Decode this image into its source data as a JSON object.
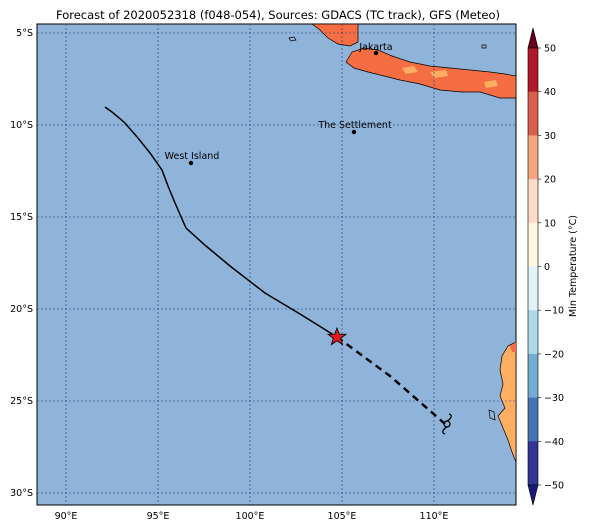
{
  "title": "Forecast of 2020052318 (f048-054), Sources: GDACS (TC track), GFS (Meteo)",
  "colors": {
    "ocean": "#8fb3d9",
    "land_warm": "#f46d43",
    "land_mild": "#fdae61",
    "grid": "#1f3a6e",
    "track": "#000000",
    "storm_marker": "#e31a1c"
  },
  "axes": {
    "lon_ticks": [
      "90°E",
      "95°E",
      "100°E",
      "105°E",
      "110°E"
    ],
    "lat_ticks": [
      "5°S",
      "10°S",
      "15°S",
      "20°S",
      "25°S",
      "30°S"
    ]
  },
  "places": [
    {
      "name": "Jakarta"
    },
    {
      "name": "The Settlement"
    },
    {
      "name": "West Island"
    }
  ],
  "track": {
    "past_label_icon": "star-icon",
    "forecast_icon": "cyclone-icon"
  },
  "colorbar": {
    "label": "Min Temperature (°C)",
    "ticks": [
      "50",
      "40",
      "30",
      "20",
      "10",
      "0",
      "−10",
      "−20",
      "−30",
      "−40",
      "−50"
    ],
    "colors": [
      "#67001f",
      "#b2182b",
      "#d6604d",
      "#f4a582",
      "#fddbc7",
      "#fff5e0",
      "#e0f3f8",
      "#abd9e9",
      "#74add1",
      "#4575b4",
      "#313695",
      "#1a1a7a"
    ]
  }
}
